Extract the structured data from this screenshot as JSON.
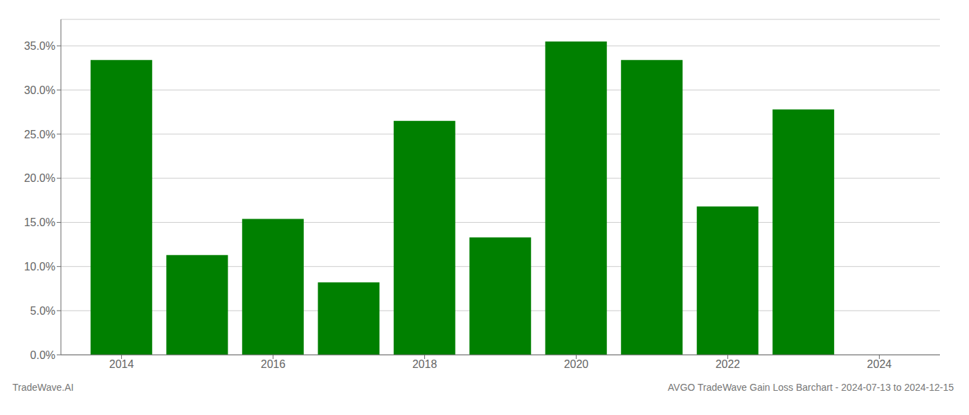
{
  "chart_data": {
    "type": "bar",
    "title": "AVGO TradeWave Gain Loss Barchart - 2024-07-13 to 2024-12-15",
    "annotations": [
      "TradeWave.AI"
    ],
    "x": [
      2014,
      2015,
      2016,
      2017,
      2018,
      2019,
      2020,
      2021,
      2022,
      2023
    ],
    "values": [
      0.334,
      0.113,
      0.154,
      0.082,
      0.265,
      0.133,
      0.355,
      0.334,
      0.168,
      0.278
    ],
    "color": "#008000",
    "xlim": [
      2013.2,
      2024.8
    ],
    "xticks": [
      2014,
      2016,
      2018,
      2020,
      2022,
      2024
    ],
    "ylim": [
      0,
      0.38
    ],
    "yticks": [
      {
        "value": 0.0,
        "label": "0.0%"
      },
      {
        "value": 0.05,
        "label": "5.0%"
      },
      {
        "value": 0.1,
        "label": "10.0%"
      },
      {
        "value": 0.15,
        "label": "15.0%"
      },
      {
        "value": 0.2,
        "label": "20.0%"
      },
      {
        "value": 0.25,
        "label": "25.0%"
      },
      {
        "value": 0.3,
        "label": "30.0%"
      },
      {
        "value": 0.35,
        "label": "35.0%"
      }
    ],
    "grid": true
  }
}
